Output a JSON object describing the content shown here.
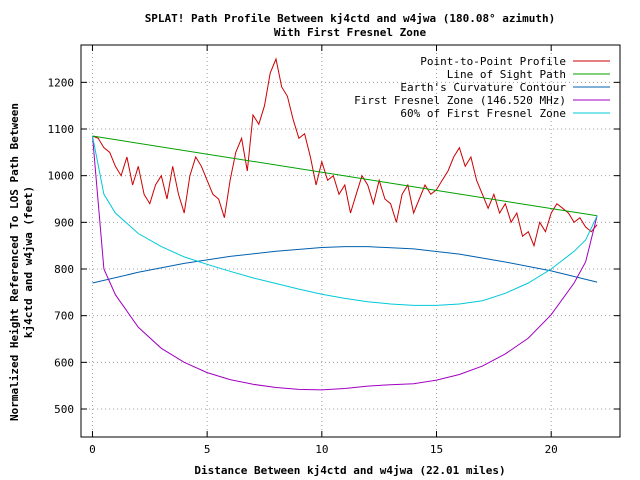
{
  "chart_data": {
    "type": "line",
    "title": "SPLAT! Path Profile Between kj4ctd and w4jwa (180.08° azimuth)",
    "subtitle": "With First Fresnel Zone",
    "xlabel": "Distance Between kj4ctd and w4jwa (22.01 miles)",
    "ylabel_lines": [
      "Normalized Height Referenced To LOS Path Between",
      "kj4ctd and w4jwa (feet)"
    ],
    "xlim": [
      -0.5,
      23
    ],
    "ylim": [
      440,
      1280
    ],
    "x_ticks": [
      0,
      5,
      10,
      15,
      20
    ],
    "y_ticks": [
      500,
      600,
      700,
      800,
      900,
      1000,
      1100,
      1200
    ],
    "grid": true,
    "legend_position": "top-right",
    "path_distance": 22.01,
    "series": [
      {
        "name": "Point-to-Point Profile",
        "color": "#cc0000",
        "x": [
          0,
          0.25,
          0.5,
          0.75,
          1.0,
          1.25,
          1.5,
          1.75,
          2.0,
          2.25,
          2.5,
          2.75,
          3.0,
          3.25,
          3.5,
          3.75,
          4.0,
          4.25,
          4.5,
          4.75,
          5.0,
          5.25,
          5.5,
          5.75,
          6.0,
          6.25,
          6.5,
          6.75,
          7.0,
          7.25,
          7.5,
          7.75,
          8.0,
          8.25,
          8.5,
          8.75,
          9.0,
          9.25,
          9.5,
          9.75,
          10.0,
          10.25,
          10.5,
          10.75,
          11.0,
          11.25,
          11.5,
          11.75,
          12.0,
          12.25,
          12.5,
          12.75,
          13.0,
          13.25,
          13.5,
          13.75,
          14.0,
          14.25,
          14.5,
          14.75,
          15.0,
          15.25,
          15.5,
          15.75,
          16.0,
          16.25,
          16.5,
          16.75,
          17.0,
          17.25,
          17.5,
          17.75,
          18.0,
          18.25,
          18.5,
          18.75,
          19.0,
          19.25,
          19.5,
          19.75,
          20.0,
          20.25,
          20.5,
          20.75,
          21.0,
          21.25,
          21.5,
          21.75,
          22.0
        ],
        "y": [
          1085,
          1080,
          1060,
          1050,
          1020,
          1000,
          1040,
          980,
          1020,
          960,
          940,
          980,
          1000,
          950,
          1020,
          960,
          920,
          1000,
          1040,
          1020,
          990,
          960,
          950,
          910,
          990,
          1050,
          1080,
          1010,
          1130,
          1110,
          1150,
          1220,
          1250,
          1190,
          1170,
          1120,
          1080,
          1090,
          1040,
          980,
          1030,
          990,
          1000,
          960,
          980,
          920,
          960,
          1000,
          980,
          940,
          990,
          950,
          940,
          900,
          960,
          980,
          920,
          950,
          980,
          960,
          970,
          990,
          1010,
          1040,
          1060,
          1020,
          1040,
          990,
          960,
          930,
          960,
          920,
          940,
          900,
          920,
          870,
          880,
          850,
          900,
          880,
          920,
          940,
          930,
          920,
          900,
          910,
          890,
          880,
          895
        ]
      },
      {
        "name": "Line of Sight Path",
        "color": "#00a000",
        "x": [
          0,
          22
        ],
        "y": [
          1085,
          914
        ]
      },
      {
        "name": "Earth's Curvature Contour",
        "color": "#0060b0",
        "x": [
          0,
          2,
          4,
          6,
          8,
          10,
          11,
          12,
          14,
          16,
          18,
          20,
          22
        ],
        "y": [
          770,
          793,
          812,
          827,
          838,
          846,
          848,
          848,
          843,
          832,
          815,
          796,
          772
        ]
      },
      {
        "name": "First Fresnel Zone (146.520 MHz)",
        "color": "#a000c0",
        "x": [
          0,
          0.5,
          1,
          2,
          3,
          4,
          5,
          6,
          7,
          8,
          9,
          10,
          11,
          12,
          13,
          14,
          15,
          16,
          17,
          18,
          19,
          20,
          21,
          21.5,
          22
        ],
        "y": [
          1085,
          800,
          745,
          675,
          630,
          600,
          578,
          563,
          553,
          546,
          542,
          541,
          544,
          549,
          552,
          554,
          562,
          574,
          592,
          618,
          652,
          702,
          770,
          815,
          914
        ]
      },
      {
        "name": "60% of First Fresnel Zone",
        "color": "#00c8d8",
        "x": [
          0,
          0.5,
          1,
          2,
          3,
          4,
          5,
          6,
          7,
          8,
          9,
          10,
          11,
          12,
          13,
          14,
          15,
          16,
          17,
          18,
          19,
          20,
          21,
          21.5,
          22
        ],
        "y": [
          1085,
          960,
          920,
          876,
          848,
          826,
          810,
          795,
          781,
          769,
          757,
          746,
          737,
          730,
          725,
          722,
          722,
          725,
          732,
          748,
          770,
          800,
          838,
          862,
          914
        ]
      }
    ]
  }
}
